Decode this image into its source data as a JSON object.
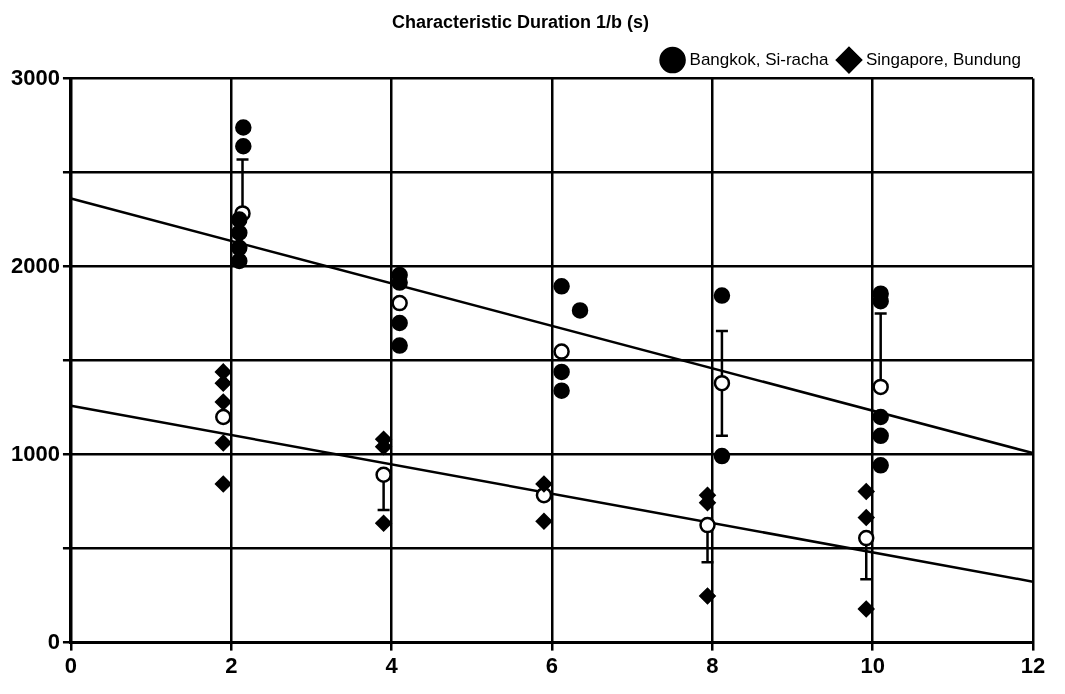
{
  "chart_data": {
    "type": "scatter",
    "title": "Characteristic Duration 1/b (s)",
    "xlim": [
      0,
      12
    ],
    "xticks": [
      0,
      2,
      4,
      6,
      8,
      10,
      12
    ],
    "ylim": [
      0,
      3000
    ],
    "yticks": [
      0,
      {
        "value": 500,
        "label": null
      },
      1000,
      {
        "value": 1500,
        "label": null
      },
      2000,
      {
        "value": 2500,
        "label": null
      },
      3000
    ],
    "grid": true,
    "legend": "top right",
    "series": [
      {
        "name": "Bangkok, Si-racha",
        "marker": "circle",
        "color": "#000000",
        "x": [
          2.15,
          2.15,
          2.1,
          2.1,
          2.1,
          2.1,
          4.1,
          4.1,
          4.1,
          4.1,
          6.12,
          6.35,
          6.12,
          6.12,
          8.12,
          8.12,
          10.1,
          10.1,
          10.1,
          10.1,
          10.1
        ],
        "values": [
          2740,
          2640,
          2250,
          2180,
          2100,
          2030,
          1955,
          1915,
          1700,
          1580,
          1895,
          1767,
          1440,
          1340,
          1846,
          992,
          1856,
          1816,
          1200,
          1100,
          943
        ]
      },
      {
        "name": "Singapore, Bundung",
        "marker": "diamond",
        "color": "#000000",
        "x": [
          1.9,
          1.9,
          1.9,
          1.9,
          1.9,
          3.9,
          3.9,
          3.9,
          5.9,
          5.9,
          7.94,
          7.94,
          7.94,
          9.92,
          9.92,
          9.92
        ],
        "values": [
          1440,
          1380,
          1280,
          1062,
          844,
          1082,
          1042,
          635,
          844,
          645,
          784,
          744,
          248,
          804,
          665,
          179
        ]
      },
      {
        "marker": "circle",
        "color": "#ffffff",
        "x": [
          2.14,
          4.1,
          6.12,
          8.12,
          10.1
        ],
        "values": [
          2283,
          1806,
          1548,
          1380,
          1360
        ],
        "errors": [
          [
            2283,
            2570
          ],
          null,
          null,
          [
            1100,
            1657
          ],
          [
            1360,
            1750
          ]
        ]
      },
      {
        "marker": "circle",
        "color": "#ffffff",
        "x": [
          1.9,
          3.9,
          5.9,
          7.94,
          9.92
        ],
        "values": [
          1200,
          893,
          784,
          625,
          556
        ],
        "errors": [
          null,
          [
            705,
            893
          ],
          null,
          [
            427,
            625
          ],
          [
            337,
            556
          ]
        ]
      },
      {
        "type": "line",
        "color": "#000000",
        "marker": "none",
        "x": [
          0,
          12
        ],
        "values": [
          2362,
          1008
        ]
      },
      {
        "type": "line",
        "color": "#000000",
        "marker": "none",
        "x": [
          0,
          12
        ],
        "values": [
          1260,
          324
        ]
      }
    ]
  }
}
